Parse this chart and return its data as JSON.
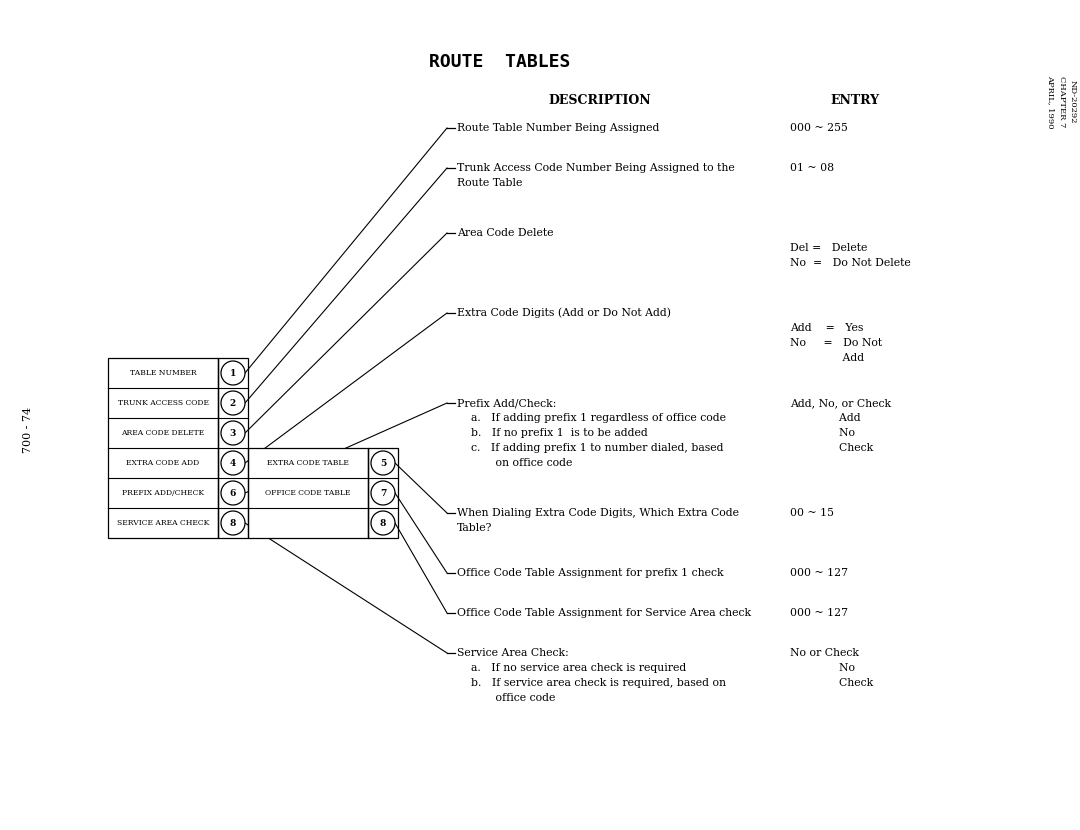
{
  "title": "ROUTE  TABLES",
  "col_desc": "DESCRIPTION",
  "col_entry": "ENTRY",
  "sidebar_text": "700 - 74",
  "corner_text": "ND-20292\nCHAPTER 7\nAPRIL, 1990",
  "table1_rows": [
    {
      "label": "TABLE NUMBER",
      "num": "1"
    },
    {
      "label": "TRUNK ACCESS CODE",
      "num": "2"
    },
    {
      "label": "AREA CODE DELETE",
      "num": "3"
    },
    {
      "label": "EXTRA CODE ADD",
      "num": "4"
    },
    {
      "label": "PREFIX ADD/CHECK",
      "num": "6"
    },
    {
      "label": "SERVICE AREA CHECK",
      "num": "8"
    }
  ],
  "table2_rows": [
    {
      "label": "EXTRA CODE TABLE",
      "num": "5",
      "span": 1
    },
    {
      "label": "OFFICE CODE TABLE",
      "num": "7",
      "span": 2
    }
  ],
  "bg_color": "#ffffff",
  "text_color": "#000000"
}
